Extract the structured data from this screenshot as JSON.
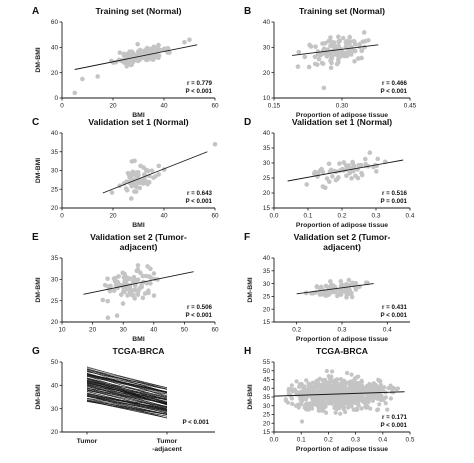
{
  "colors": {
    "point": "#c4c4c4",
    "fit": "#1a1a1a",
    "axis": "#1a1a1a",
    "text": "#111111"
  },
  "panels": {
    "A": {
      "letter": "A",
      "title": "Training set (Normal)",
      "xlabel": "BMI",
      "ylabel": "DM-BMI",
      "r": "r = 0.779",
      "p": "P < 0.001"
    },
    "B": {
      "letter": "B",
      "title": "Training set (Normal)",
      "xlabel": "Proportion of adipose tissue",
      "ylabel": "",
      "r": "r = 0.466",
      "p": "P < 0.001"
    },
    "C": {
      "letter": "C",
      "title": "Validation set 1 (Normal)",
      "xlabel": "BMI",
      "ylabel": "DM-BMI",
      "r": "r = 0.643",
      "p": "P < 0.001"
    },
    "D": {
      "letter": "D",
      "title": "Validation set 1 (Normal)",
      "xlabel": "Proportion of adipose tissue",
      "ylabel": "",
      "r": "r = 0.516",
      "p": "P = 0.001"
    },
    "E": {
      "letter": "E",
      "title": "Validation set 2 (Tumor-adjacent)",
      "title_lines": [
        "Validation set 2 (Tumor-",
        "adjacent)"
      ],
      "xlabel": "BMI",
      "ylabel": "DM-BMI",
      "r": "r = 0.506",
      "p": "P < 0.001"
    },
    "F": {
      "letter": "F",
      "title": "Validation set 2 (Tumor-adjacent)",
      "title_lines": [
        "Validation set 2 (Tumor-",
        "adjacent)"
      ],
      "xlabel": "Proportion of adipose tissue",
      "ylabel": "DM-BMI",
      "r": "r = 0.431",
      "p": "P < 0.001"
    },
    "G": {
      "letter": "G",
      "title": "TCGA-BRCA",
      "xlabel": "",
      "ylabel": "DM-BMI",
      "r": "",
      "p": "P < 0.001"
    },
    "H": {
      "letter": "H",
      "title": "TCGA-BRCA",
      "xlabel": "Proportion of adipose tissue",
      "ylabel": "DM-BMI",
      "r": "r = 0.171",
      "p": "P < 0.001"
    }
  },
  "chart_data": [
    {
      "panel": "A",
      "type": "scatter",
      "title": "Training set (Normal)",
      "xlabel": "BMI",
      "ylabel": "DM-BMI",
      "xlim": [
        0,
        60
      ],
      "ylim": [
        0,
        60
      ],
      "xticks": [
        0,
        20,
        40,
        60
      ],
      "yticks": [
        0,
        20,
        40,
        60
      ],
      "fit": {
        "x": [
          5,
          53
        ],
        "y": [
          22.5,
          42
        ]
      },
      "points": {
        "n": 180,
        "x_range": [
          16,
          45
        ],
        "slope": 0.42,
        "intercept": 20.5,
        "noise": 2.5
      },
      "extra_points": [
        [
          5,
          4
        ],
        [
          8,
          15
        ],
        [
          14,
          17
        ],
        [
          50,
          46
        ],
        [
          48,
          44
        ]
      ],
      "r": 0.779,
      "p": "< 0.001"
    },
    {
      "panel": "B",
      "type": "scatter",
      "title": "Training set (Normal)",
      "xlabel": "Proportion of adipose tissue",
      "ylabel": "",
      "xlim": [
        0.15,
        0.45
      ],
      "ylim": [
        10,
        40
      ],
      "xticks": [
        0.15,
        0.3,
        0.45
      ],
      "yticks": [
        10,
        20,
        30,
        40
      ],
      "fit": {
        "x": [
          0.19,
          0.38
        ],
        "y": [
          26.8,
          31
        ]
      },
      "points": {
        "n": 110,
        "x_range": [
          0.19,
          0.38
        ],
        "slope": 21,
        "intercept": 22.8,
        "noise": 2.6
      },
      "extra_points": [
        [
          0.26,
          14
        ]
      ],
      "r": 0.466,
      "p": "< 0.001"
    },
    {
      "panel": "C",
      "type": "scatter",
      "title": "Validation set 1 (Normal)",
      "xlabel": "BMI",
      "ylabel": "DM-BMI",
      "xlim": [
        0,
        60
      ],
      "ylim": [
        20,
        40
      ],
      "xticks": [
        0,
        20,
        40,
        60
      ],
      "yticks": [
        20,
        25,
        30,
        35,
        40
      ],
      "fit": {
        "x": [
          16,
          57
        ],
        "y": [
          24,
          35
        ]
      },
      "points": {
        "n": 65,
        "x_range": [
          18,
          42
        ],
        "slope": 0.27,
        "intercept": 19.5,
        "noise": 1.8
      },
      "extra_points": [
        [
          60,
          37
        ]
      ],
      "r": 0.643,
      "p": "< 0.001"
    },
    {
      "panel": "D",
      "type": "scatter",
      "title": "Validation set 1 (Normal)",
      "xlabel": "Proportion of adipose tissue",
      "ylabel": "",
      "xlim": [
        0.0,
        0.4
      ],
      "ylim": [
        15,
        40
      ],
      "xticks": [
        0.0,
        0.1,
        0.2,
        0.3,
        0.4
      ],
      "yticks": [
        15,
        20,
        25,
        30,
        35,
        40
      ],
      "fit": {
        "x": [
          0.04,
          0.38
        ],
        "y": [
          24,
          31
        ]
      },
      "points": {
        "n": 60,
        "x_range": [
          0.05,
          0.38
        ],
        "slope": 20,
        "intercept": 23.3,
        "noise": 1.8
      },
      "extra_points": [],
      "r": 0.516,
      "p": "= 0.001"
    },
    {
      "panel": "E",
      "type": "scatter",
      "title": "Validation set 2 (Tumor-adjacent)",
      "xlabel": "BMI",
      "ylabel": "DM-BMI",
      "xlim": [
        10,
        60
      ],
      "ylim": [
        20,
        35
      ],
      "xticks": [
        10,
        20,
        30,
        40,
        50,
        60
      ],
      "yticks": [
        20,
        25,
        30,
        35
      ],
      "fit": {
        "x": [
          17,
          53
        ],
        "y": [
          26.5,
          31.8
        ]
      },
      "points": {
        "n": 90,
        "x_range": [
          18,
          45
        ],
        "slope": 0.15,
        "intercept": 24,
        "noise": 2.1
      },
      "extra_points": [
        [
          25,
          21
        ],
        [
          28,
          21.5
        ]
      ],
      "r": 0.506,
      "p": "< 0.001"
    },
    {
      "panel": "F",
      "type": "scatter",
      "title": "Validation set 2 (Tumor-adjacent)",
      "xlabel": "Proportion of adipose tissue",
      "ylabel": "DM-BMI",
      "xlim": [
        0.15,
        0.45
      ],
      "ylim": [
        15,
        40
      ],
      "xticks": [
        0.2,
        0.3,
        0.4
      ],
      "yticks": [
        15,
        20,
        25,
        30,
        35,
        40
      ],
      "fit": {
        "x": [
          0.2,
          0.37
        ],
        "y": [
          26,
          30
        ]
      },
      "points": {
        "n": 80,
        "x_range": [
          0.2,
          0.37
        ],
        "slope": 23,
        "intercept": 21.5,
        "noise": 1.4
      },
      "extra_points": [],
      "r": 0.431,
      "p": "< 0.001"
    },
    {
      "panel": "G",
      "type": "line",
      "title": "TCGA-BRCA",
      "xlabel": "",
      "ylabel": "DM-BMI",
      "categories": [
        "Tumor",
        "Tumor -adjacent"
      ],
      "ylim": [
        20,
        50
      ],
      "yticks": [
        20,
        30,
        40,
        50
      ],
      "pairs": {
        "n": 100,
        "tumor_range": [
          33,
          48
        ],
        "adjacent_range": [
          26,
          38
        ]
      },
      "p": "< 0.001"
    },
    {
      "panel": "H",
      "type": "scatter",
      "title": "TCGA-BRCA",
      "xlabel": "Proportion of adipose tissue",
      "ylabel": "DM-BMI",
      "xlim": [
        0.0,
        0.5
      ],
      "ylim": [
        15,
        55
      ],
      "xticks": [
        0.0,
        0.1,
        0.2,
        0.3,
        0.4,
        0.5
      ],
      "yticks": [
        15,
        20,
        25,
        30,
        35,
        40,
        45,
        50,
        55
      ],
      "fit": {
        "x": [
          0.0,
          0.48
        ],
        "y": [
          35.5,
          38
        ]
      },
      "points": {
        "n": 800,
        "x_range": [
          0.0,
          0.48
        ],
        "slope": 5,
        "intercept": 35.5,
        "noise": 4
      },
      "extra_points": [],
      "r": 0.171,
      "p": "< 0.001"
    }
  ]
}
